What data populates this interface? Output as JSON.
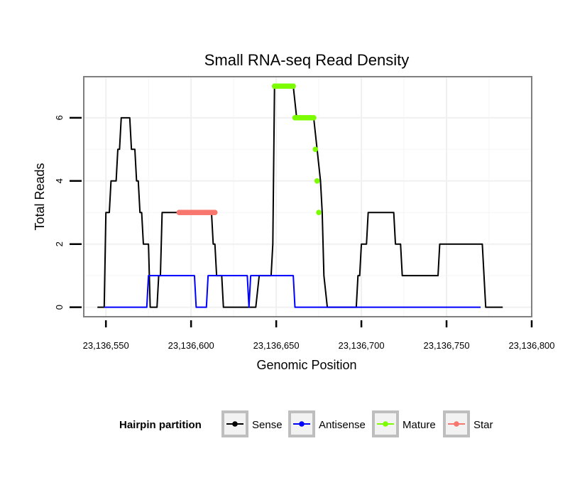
{
  "chart_data": {
    "type": "line",
    "title": "Small RNA-seq Read Density",
    "xlabel": "Genomic Position",
    "ylabel": "Total Reads",
    "xlim": [
      23136537,
      23136800
    ],
    "ylim": [
      -0.3,
      7.3
    ],
    "x_ticks": [
      23136550,
      23136600,
      23136650,
      23136700,
      23136750,
      23136800
    ],
    "x_tick_labels": [
      "23,136,550",
      "23,136,600",
      "23,136,650",
      "23,136,700",
      "23,136,750",
      "23,136,800"
    ],
    "y_ticks": [
      0,
      2,
      4,
      6
    ],
    "y_tick_labels": [
      "0",
      "2",
      "4",
      "6"
    ],
    "grid": true,
    "legend": {
      "title": "Hairpin partition",
      "position": "bottom",
      "entries": [
        {
          "name": "Sense",
          "color": "#000000"
        },
        {
          "name": "Antisense",
          "color": "#0000FF"
        },
        {
          "name": "Mature",
          "color": "#7CFC00"
        },
        {
          "name": "Star",
          "color": "#F8766D"
        }
      ]
    },
    "series": [
      {
        "name": "Sense",
        "color": "#000000",
        "markers": false,
        "points": [
          [
            23136545,
            0
          ],
          [
            23136549,
            0
          ],
          [
            23136550,
            3
          ],
          [
            23136552,
            3
          ],
          [
            23136553,
            4
          ],
          [
            23136556,
            4
          ],
          [
            23136557,
            5
          ],
          [
            23136558,
            5
          ],
          [
            23136559,
            6
          ],
          [
            23136564,
            6
          ],
          [
            23136565,
            5
          ],
          [
            23136567,
            5
          ],
          [
            23136568,
            4
          ],
          [
            23136569,
            4
          ],
          [
            23136570,
            3
          ],
          [
            23136571,
            3
          ],
          [
            23136572,
            2
          ],
          [
            23136575,
            2
          ],
          [
            23136576,
            0
          ],
          [
            23136580,
            0
          ],
          [
            23136581,
            1
          ],
          [
            23136582,
            1
          ],
          [
            23136583,
            3
          ],
          [
            23136612,
            3
          ],
          [
            23136613,
            2
          ],
          [
            23136614,
            2
          ],
          [
            23136615,
            1
          ],
          [
            23136618,
            1
          ],
          [
            23136619,
            0
          ],
          [
            23136638,
            0
          ],
          [
            23136640,
            1
          ],
          [
            23136647,
            1
          ],
          [
            23136648,
            2
          ],
          [
            23136649,
            7
          ],
          [
            23136660,
            7
          ],
          [
            23136662,
            6
          ],
          [
            23136672,
            6
          ],
          [
            23136674,
            5
          ],
          [
            23136676,
            4
          ],
          [
            23136677,
            3
          ],
          [
            23136678,
            1
          ],
          [
            23136680,
            0
          ],
          [
            23136697,
            0
          ],
          [
            23136698,
            1
          ],
          [
            23136699,
            1
          ],
          [
            23136700,
            2
          ],
          [
            23136703,
            2
          ],
          [
            23136704,
            3
          ],
          [
            23136719,
            3
          ],
          [
            23136720,
            2
          ],
          [
            23136723,
            2
          ],
          [
            23136724,
            1
          ],
          [
            23136745,
            1
          ],
          [
            23136746,
            2
          ],
          [
            23136771,
            2
          ],
          [
            23136773,
            0
          ],
          [
            23136783,
            0
          ]
        ]
      },
      {
        "name": "Antisense",
        "color": "#0000FF",
        "markers": false,
        "points": [
          [
            23136549,
            0
          ],
          [
            23136574,
            0
          ],
          [
            23136575,
            1
          ],
          [
            23136602,
            1
          ],
          [
            23136603,
            0
          ],
          [
            23136609,
            0
          ],
          [
            23136610,
            1
          ],
          [
            23136633,
            1
          ],
          [
            23136634,
            0
          ],
          [
            23136635,
            1
          ],
          [
            23136660,
            1
          ],
          [
            23136661,
            0
          ],
          [
            23136770,
            0
          ]
        ]
      },
      {
        "name": "Mature",
        "color": "#7CFC00",
        "markers": true,
        "points": [
          [
            23136649,
            7
          ],
          [
            23136650,
            7
          ],
          [
            23136651,
            7
          ],
          [
            23136652,
            7
          ],
          [
            23136653,
            7
          ],
          [
            23136654,
            7
          ],
          [
            23136655,
            7
          ],
          [
            23136656,
            7
          ],
          [
            23136657,
            7
          ],
          [
            23136658,
            7
          ],
          [
            23136659,
            7
          ],
          [
            23136660,
            7
          ],
          [
            23136661,
            6
          ],
          [
            23136662,
            6
          ],
          [
            23136663,
            6
          ],
          [
            23136664,
            6
          ],
          [
            23136665,
            6
          ],
          [
            23136666,
            6
          ],
          [
            23136667,
            6
          ],
          [
            23136668,
            6
          ],
          [
            23136669,
            6
          ],
          [
            23136670,
            6
          ],
          [
            23136671,
            6
          ],
          [
            23136672,
            6
          ],
          [
            23136673,
            5
          ],
          [
            23136674,
            4
          ],
          [
            23136675,
            3
          ]
        ]
      },
      {
        "name": "Star",
        "color": "#F8766D",
        "markers": true,
        "points": [
          [
            23136593,
            3
          ],
          [
            23136594,
            3
          ],
          [
            23136595,
            3
          ],
          [
            23136596,
            3
          ],
          [
            23136597,
            3
          ],
          [
            23136598,
            3
          ],
          [
            23136599,
            3
          ],
          [
            23136600,
            3
          ],
          [
            23136601,
            3
          ],
          [
            23136602,
            3
          ],
          [
            23136603,
            3
          ],
          [
            23136604,
            3
          ],
          [
            23136605,
            3
          ],
          [
            23136606,
            3
          ],
          [
            23136607,
            3
          ],
          [
            23136608,
            3
          ],
          [
            23136609,
            3
          ],
          [
            23136610,
            3
          ],
          [
            23136611,
            3
          ],
          [
            23136612,
            3
          ],
          [
            23136613,
            3
          ],
          [
            23136614,
            3
          ]
        ]
      }
    ]
  }
}
